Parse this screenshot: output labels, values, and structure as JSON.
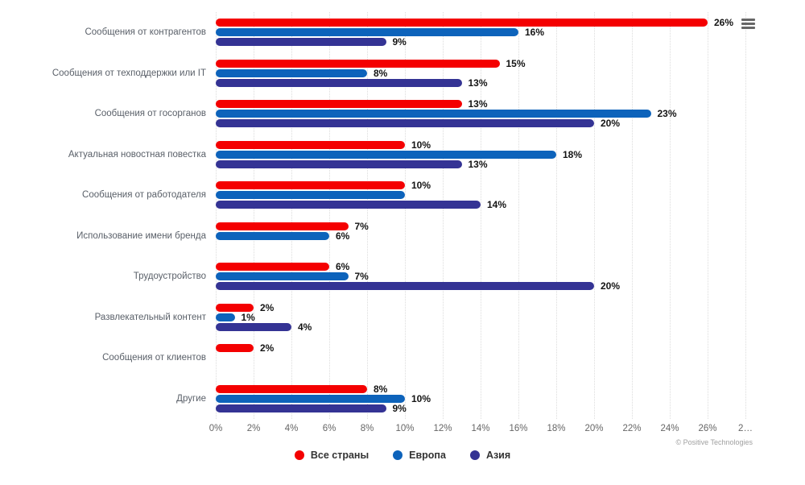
{
  "chart_data": {
    "type": "bar",
    "orientation": "horizontal",
    "title": "",
    "categories": [
      "Сообщения от контрагентов",
      "Сообщения от техподдержки или IT",
      "Сообщения от госорганов",
      "Актуальная новостная повестка",
      "Сообщения от работодателя",
      "Использование имени бренда",
      "Трудоустройство",
      "Развлекательный контент",
      "Сообщения от клиентов",
      "Другие"
    ],
    "series": [
      {
        "name": "Все страны",
        "color": "#f40001",
        "values": [
          26,
          15,
          13,
          10,
          10,
          7,
          6,
          2,
          2,
          8
        ],
        "labels": [
          "26%",
          "15%",
          "13%",
          "10%",
          "10%",
          "7%",
          "6%",
          "2%",
          "2%",
          "8%"
        ]
      },
      {
        "name": "Европа",
        "color": "#0d63bb",
        "values": [
          16,
          8,
          23,
          18,
          10,
          6,
          7,
          1,
          null,
          10
        ],
        "labels": [
          "16%",
          "8%",
          "23%",
          "18%",
          "",
          "6%",
          "7%",
          "1%",
          "",
          "10%"
        ]
      },
      {
        "name": "Азия",
        "color": "#343394",
        "values": [
          9,
          13,
          20,
          13,
          14,
          null,
          20,
          4,
          null,
          9
        ],
        "labels": [
          "9%",
          "13%",
          "20%",
          "13%",
          "14%",
          "",
          "20%",
          "4%",
          "",
          "9%"
        ]
      }
    ],
    "xaxis": {
      "tick_values": [
        0,
        2,
        4,
        6,
        8,
        10,
        12,
        14,
        16,
        18,
        20,
        22,
        24,
        26,
        28
      ],
      "tick_labels": [
        "0%",
        "2%",
        "4%",
        "6%",
        "8%",
        "10%",
        "12%",
        "14%",
        "16%",
        "18%",
        "20%",
        "22%",
        "24%",
        "26%",
        "2…"
      ]
    },
    "xlim": [
      0,
      28
    ],
    "grid": true,
    "legend_position": "bottom-center",
    "credits": "© Positive Technologies"
  },
  "icons": {
    "context_menu": "hamburger-menu"
  }
}
